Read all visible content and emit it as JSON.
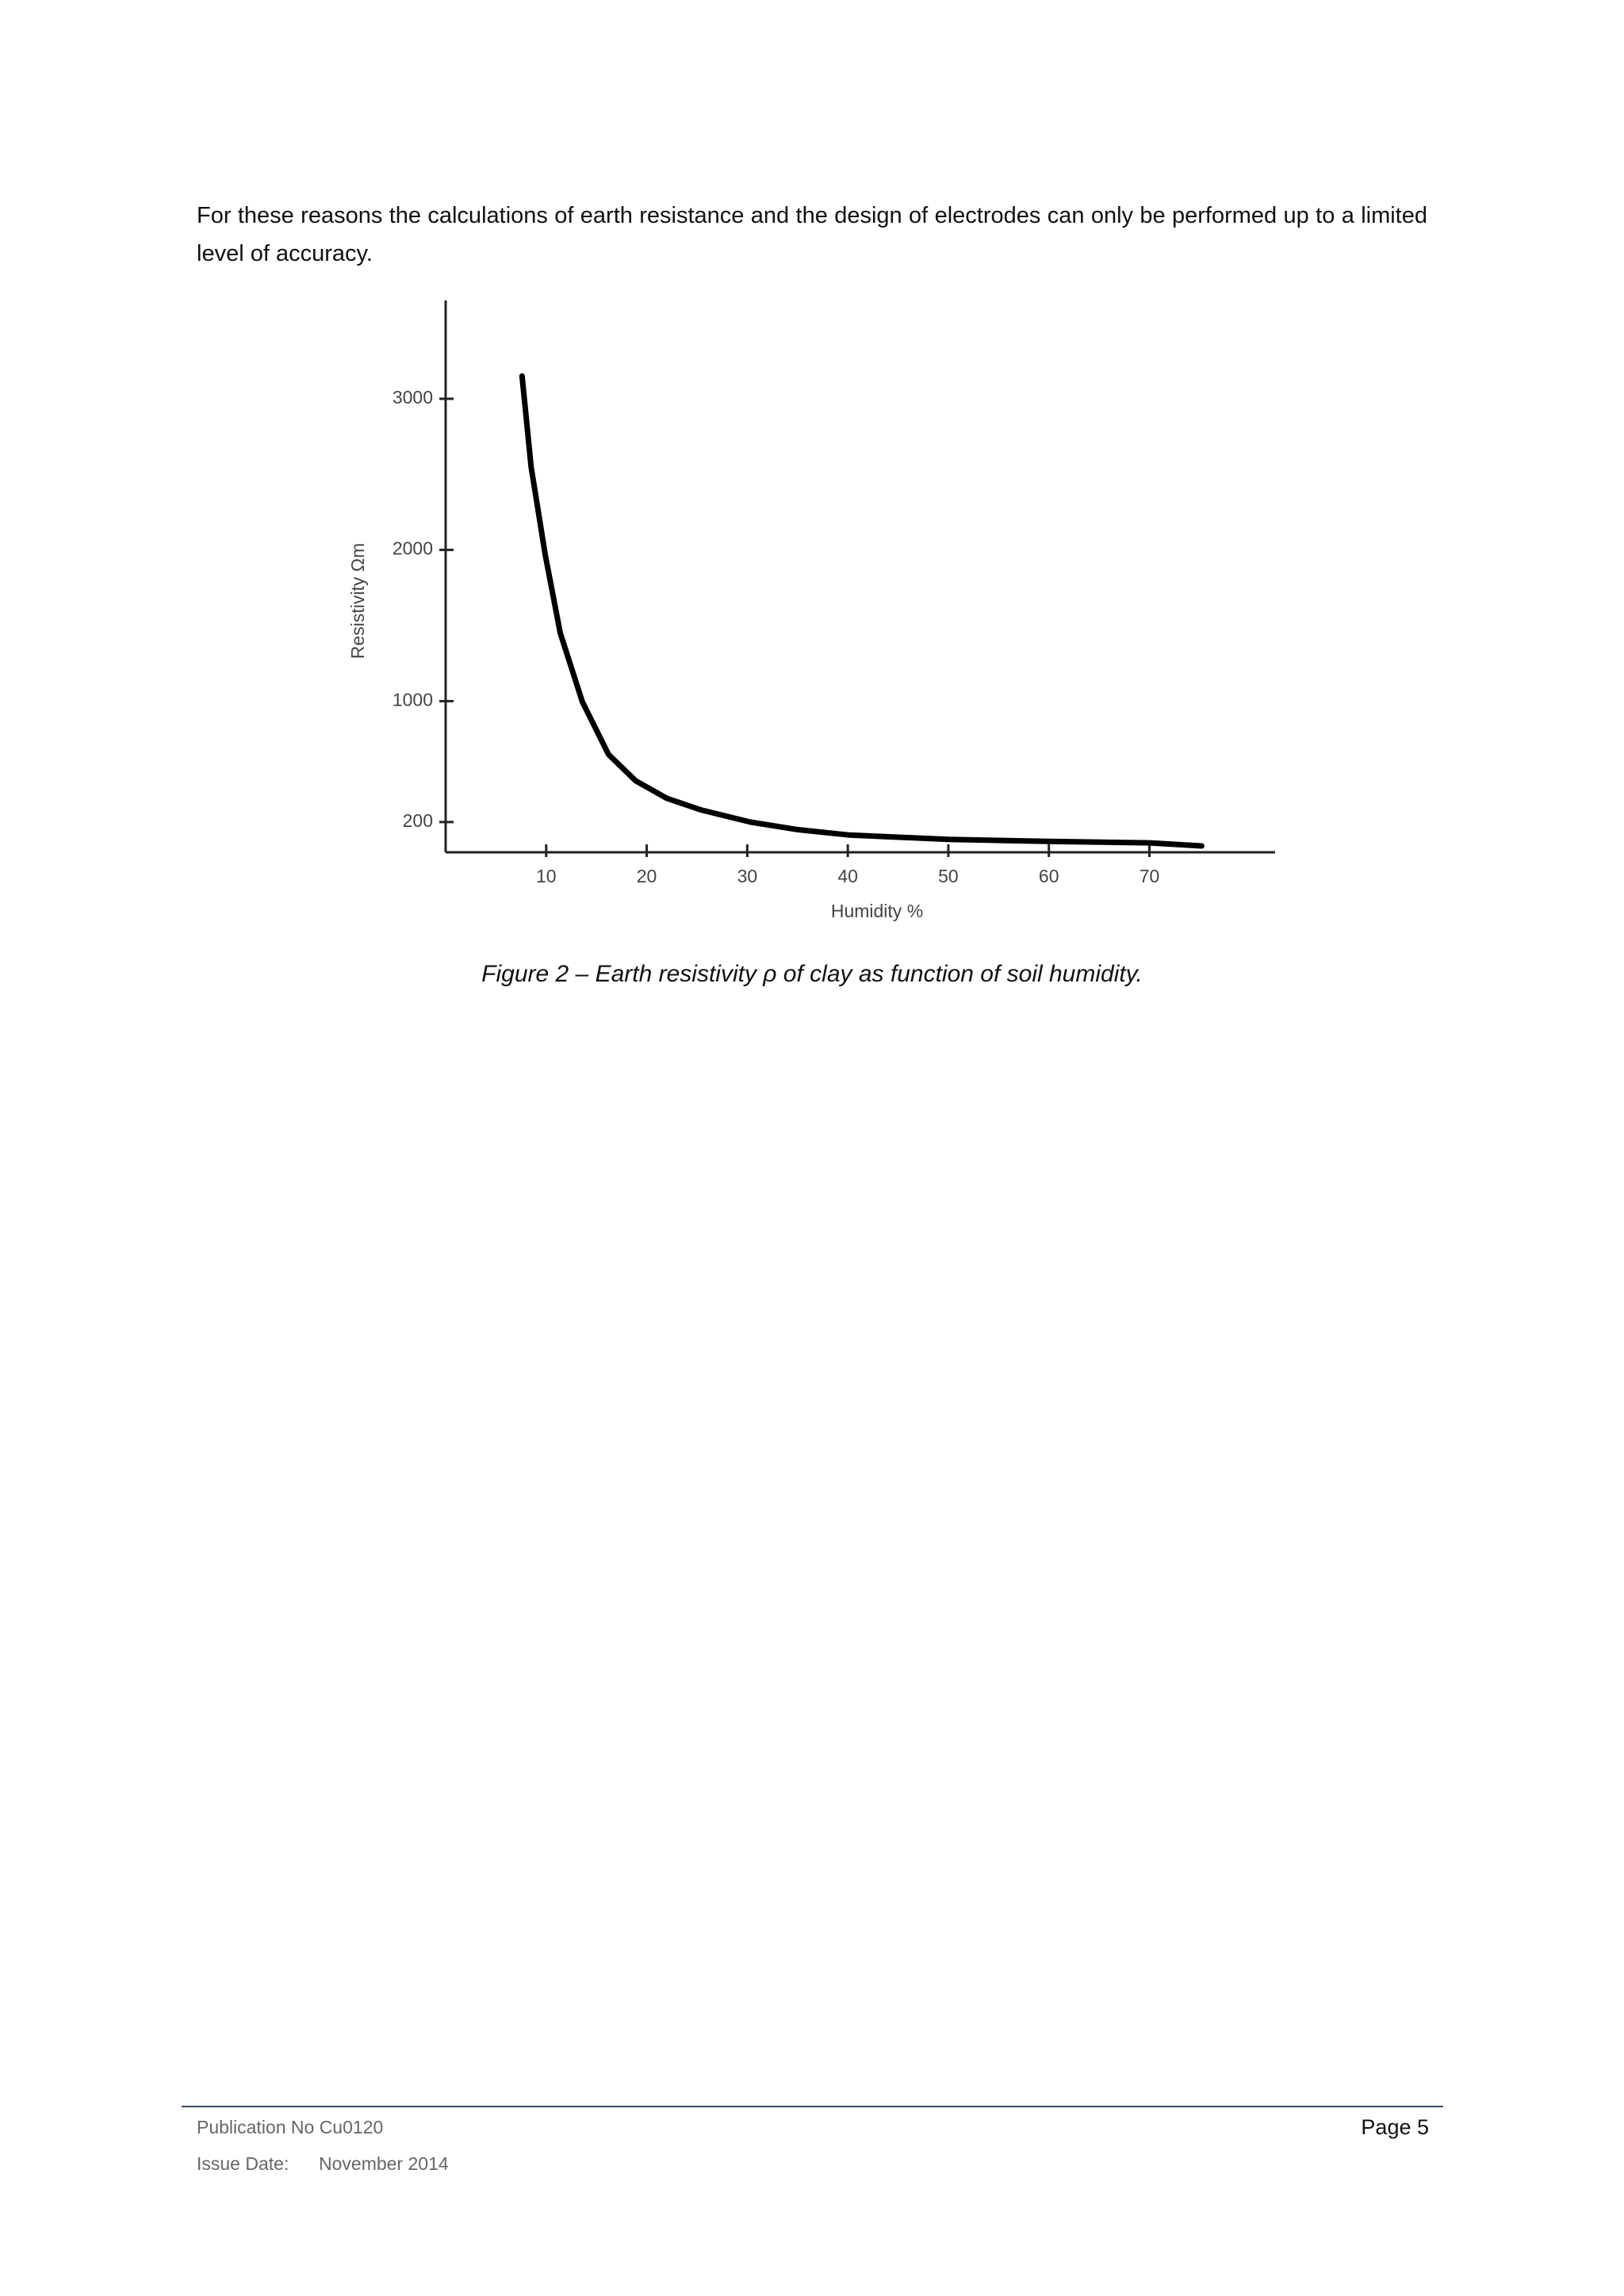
{
  "paragraph": "For these reasons the calculations of earth resistance and the design of electrodes can only be performed up to a limited level of accuracy.",
  "chart_data": {
    "type": "line",
    "x_label": "Humidity %",
    "y_label": "Resistivity Ωm",
    "x": [
      7.6,
      8.5,
      9.9,
      11.4,
      13.6,
      16.2,
      18.9,
      22,
      25.4,
      30.3,
      35,
      40,
      50,
      60,
      70,
      75.2
    ],
    "series": [
      {
        "color": "#000000",
        "values": [
          3150,
          2550,
          1970,
          1450,
          995,
          647,
          473,
          357,
          280,
          200,
          150,
          115,
          85,
          72,
          62,
          42
        ]
      }
    ],
    "xlim": [
      0,
      82.5
    ],
    "ylim": [
      0,
      3650
    ],
    "xticks": [
      10,
      20,
      30,
      40,
      50,
      60,
      70
    ],
    "yticks": [
      200,
      1000,
      2000,
      3000
    ],
    "grid": false
  },
  "caption": "Figure 2 – Earth resistivity ρ of clay as function of soil humidity.",
  "footer": {
    "publication": "Publication No Cu0120",
    "page": "Page 5",
    "issue_label": "Issue Date:",
    "issue_date": "November 2014"
  }
}
